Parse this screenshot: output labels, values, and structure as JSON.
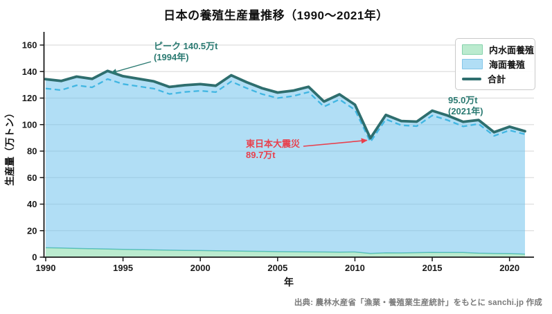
{
  "title": "日本の養殖生産量推移（1990〜2021年）",
  "axes": {
    "y_label": "生産量（万トン）",
    "x_label": "年",
    "y_ticks": [
      0,
      20,
      40,
      60,
      80,
      100,
      120,
      140,
      160
    ],
    "x_ticks": [
      1990,
      1995,
      2000,
      2005,
      2010,
      2015,
      2020
    ]
  },
  "legend": {
    "items": [
      {
        "label": "内水面養殖",
        "type": "patch",
        "fill": "#bbebcf",
        "edge": "#84d2ab"
      },
      {
        "label": "海面養殖",
        "type": "patch",
        "fill": "#b1def5",
        "edge": "#84c6e8"
      },
      {
        "label": "合計",
        "type": "line",
        "color": "#2e6e6e"
      }
    ]
  },
  "annotations": {
    "peak": {
      "line1": "ピーク 140.5万t",
      "line2": "(1994年)",
      "color": "#2b7a72",
      "target_year": 1994,
      "target_value": 140.5
    },
    "quake": {
      "line1": "東日本大震災",
      "line2": "89.7万t",
      "color": "#e8404d",
      "target_year": 2011,
      "target_value": 89.7
    },
    "latest": {
      "line1": "95.0万t",
      "line2": "(2021年)",
      "color": "#2b7a72"
    }
  },
  "source": "出典: 農林水産省「漁業・養殖業生産統計」をもとに sanchi.jp 作成",
  "colors": {
    "total_line": "#2e6e6e",
    "marine_dashed_line": "#41b6e2",
    "marine_fill": "rgba(100,190,235,0.5)",
    "inland_fill": "rgba(120,215,160,0.5)",
    "inland_edge": "#56c1a8",
    "grid": "#dedede",
    "axis": "#1a1a1a",
    "tick_label": "#1a1a1a"
  },
  "chart_data": {
    "type": "area",
    "title": "日本の養殖生産量推移（1990〜2021年）",
    "xlabel": "年",
    "ylabel": "生産量（万トン）",
    "unit": "万t",
    "xlim": [
      1990,
      2021
    ],
    "ylim": [
      0,
      160
    ],
    "grid": "horizontal",
    "legend_position": "upper right",
    "x": [
      1990,
      1991,
      1992,
      1993,
      1994,
      1995,
      1996,
      1997,
      1998,
      1999,
      2000,
      2001,
      2002,
      2003,
      2004,
      2005,
      2006,
      2007,
      2008,
      2009,
      2010,
      2011,
      2012,
      2013,
      2014,
      2015,
      2016,
      2017,
      2018,
      2019,
      2020,
      2021
    ],
    "series": [
      {
        "name": "内水面養殖",
        "style": "stacked-area-green",
        "values": [
          7.1,
          6.9,
          6.6,
          6.4,
          6.1,
          5.9,
          5.7,
          5.5,
          5.3,
          5.1,
          5.0,
          4.8,
          4.7,
          4.5,
          4.4,
          4.2,
          4.1,
          4.0,
          3.9,
          3.8,
          3.9,
          2.8,
          3.3,
          3.2,
          3.4,
          3.6,
          3.5,
          3.5,
          3.0,
          2.8,
          2.7,
          2.3
        ]
      },
      {
        "name": "海面養殖",
        "style": "stacked-area-blue-plus-dashed-line",
        "values": [
          127.2,
          126.0,
          129.6,
          128.1,
          134.4,
          130.6,
          128.9,
          127.1,
          123.1,
          124.6,
          125.5,
          124.5,
          132.5,
          127.5,
          123.0,
          120.0,
          121.5,
          124.5,
          113.5,
          119.0,
          111.1,
          86.9,
          104.0,
          99.5,
          98.8,
          106.9,
          103.3,
          98.6,
          100.5,
          91.5,
          95.7,
          92.7
        ]
      },
      {
        "name": "合計",
        "style": "thick-teal-line",
        "values": [
          134.3,
          132.9,
          136.2,
          134.5,
          140.5,
          136.5,
          134.6,
          132.6,
          128.4,
          129.7,
          130.5,
          129.3,
          137.2,
          132.0,
          127.4,
          124.2,
          125.6,
          128.5,
          117.4,
          122.8,
          115.0,
          89.7,
          107.3,
          102.7,
          102.2,
          110.5,
          106.8,
          102.1,
          103.5,
          94.3,
          98.4,
          95.0
        ]
      }
    ]
  }
}
